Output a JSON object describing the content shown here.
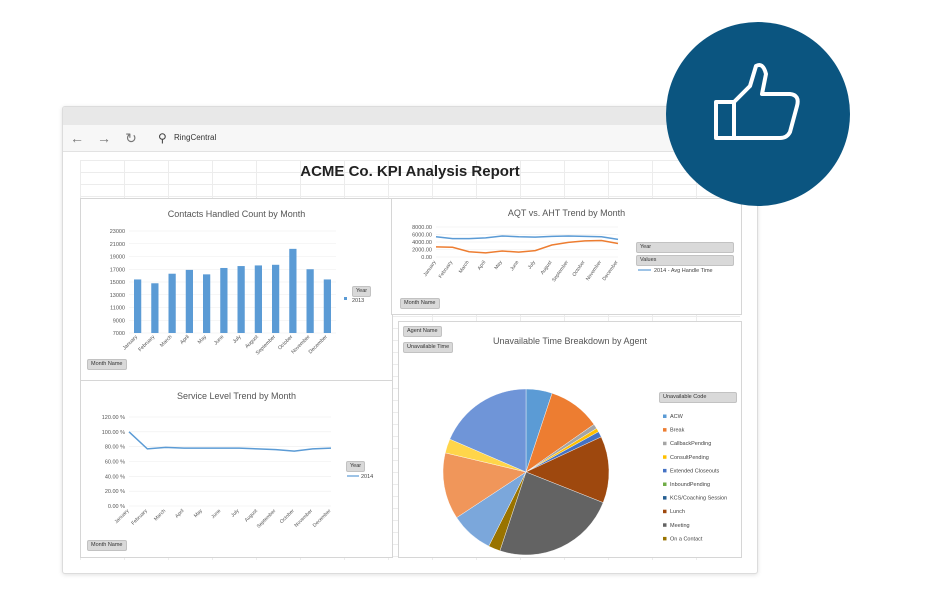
{
  "browser": {
    "nav": {
      "back": "←",
      "forward": "→",
      "refresh": "↻",
      "search_glyph": "⚲"
    },
    "address": "RingCentral"
  },
  "report": {
    "title": "ACME Co. KPI Analysis Report"
  },
  "controls": {
    "month_name": "Month Name",
    "year": "Year",
    "values": "Values",
    "agent_name": "Agent Name",
    "unavailable_time": "Unavailable Time",
    "unavailable_code": "Unavailable Code"
  },
  "legends": {
    "contacts_series": "2013",
    "aqt_series": "2014 - Avg Handle Time",
    "service_series": "2014"
  },
  "colors": {
    "accent_blue": "#5b9bd5",
    "orange": "#ed7d31",
    "badge": "#0b5580"
  },
  "chart_data": [
    {
      "type": "bar",
      "title": "Contacts Handled Count by Month",
      "categories": [
        "January",
        "February",
        "March",
        "April",
        "May",
        "June",
        "July",
        "August",
        "September",
        "October",
        "November",
        "December"
      ],
      "yticks": [
        "23000",
        "21000",
        "19000",
        "17000",
        "15000",
        "13000",
        "11000",
        "9000",
        "7000"
      ],
      "ylim": [
        7000,
        23000
      ],
      "series": [
        {
          "name": "2013",
          "values": [
            15400,
            14800,
            16300,
            16900,
            16200,
            17200,
            17500,
            17600,
            17700,
            20200,
            17000,
            15400
          ]
        }
      ]
    },
    {
      "type": "line",
      "title": "AQT vs. AHT Trend by Month",
      "categories": [
        "January",
        "February",
        "March",
        "April",
        "May",
        "June",
        "July",
        "August",
        "September",
        "October",
        "November",
        "December"
      ],
      "yticks": [
        "8000.00",
        "6000.00",
        "4000.00",
        "2000.00",
        "0.00"
      ],
      "ylim": [
        0,
        8000
      ],
      "series": [
        {
          "name": "2014 - Avg Handle Time",
          "values": [
            5400,
            4900,
            4900,
            5100,
            5600,
            5400,
            5300,
            5500,
            5600,
            5500,
            5400,
            4700
          ]
        },
        {
          "values": [
            2700,
            2600,
            1400,
            1100,
            1600,
            1300,
            1700,
            3200,
            3900,
            4300,
            4400,
            3600
          ]
        }
      ]
    },
    {
      "type": "line",
      "title": "Service Level Trend by Month",
      "categories": [
        "January",
        "February",
        "March",
        "April",
        "May",
        "June",
        "July",
        "August",
        "September",
        "October",
        "November",
        "December"
      ],
      "yticks": [
        "120.00 %",
        "100.00 %",
        "80.00 %",
        "60.00 %",
        "40.00 %",
        "20.00 %",
        "0.00 %"
      ],
      "ylim": [
        0,
        120
      ],
      "series": [
        {
          "name": "2014",
          "values": [
            100,
            77,
            79,
            78,
            78,
            78,
            78,
            77,
            76,
            74,
            77,
            78
          ]
        }
      ]
    },
    {
      "type": "pie",
      "title": "Unavailable Time Breakdown by Agent",
      "categories": [
        "ACW",
        "Break",
        "CallbackPending",
        "ConsultPending",
        "Extended Closeouts",
        "InboundPending",
        "KCS/Coaching Session",
        "Lunch",
        "Meeting",
        "On a Contact"
      ],
      "colors": [
        "#5b9bd5",
        "#ed7d31",
        "#a5a5a5",
        "#ffc000",
        "#4472c4",
        "#70ad47",
        "#255e91",
        "#9e480e",
        "#636363",
        "#997300"
      ],
      "slices": [
        {
          "label": "ACW",
          "value": 5.5,
          "color": "#5b9bd5"
        },
        {
          "label": "Break",
          "value": 11,
          "color": "#ed7d31"
        },
        {
          "label": "CallbackPending",
          "value": 1,
          "color": "#a5a5a5"
        },
        {
          "label": "ConsultPending",
          "value": 0.8,
          "color": "#ffc000"
        },
        {
          "label": "Extended Closeouts",
          "value": 1.2,
          "color": "#4472c4"
        },
        {
          "label": "Lunch",
          "value": 14,
          "color": "#9e480e"
        },
        {
          "label": "Meeting",
          "value": 26,
          "color": "#636363"
        },
        {
          "label": "On a Contact",
          "value": 2.5,
          "color": "#997300"
        },
        {
          "label": "",
          "value": 9,
          "color": "#7ba7db"
        },
        {
          "label": "",
          "value": 14,
          "color": "#f0965a"
        },
        {
          "label": "",
          "value": 3,
          "color": "#ffd54a"
        },
        {
          "label": "",
          "value": 20,
          "color": "#6f95d8"
        }
      ]
    }
  ]
}
